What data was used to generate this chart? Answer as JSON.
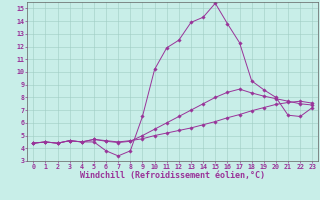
{
  "xlabel": "Windchill (Refroidissement éolien,°C)",
  "xlim": [
    -0.5,
    23.5
  ],
  "ylim": [
    3,
    15.5
  ],
  "xticks": [
    0,
    1,
    2,
    3,
    4,
    5,
    6,
    7,
    8,
    9,
    10,
    11,
    12,
    13,
    14,
    15,
    16,
    17,
    18,
    19,
    20,
    21,
    22,
    23
  ],
  "yticks": [
    3,
    4,
    5,
    6,
    7,
    8,
    9,
    10,
    11,
    12,
    13,
    14,
    15
  ],
  "bg_color": "#c8eee8",
  "grid_color": "#a0ccc4",
  "line_color": "#993399",
  "line1_x": [
    0,
    1,
    2,
    3,
    4,
    5,
    6,
    7,
    8,
    9,
    10,
    11,
    12,
    13,
    14,
    15,
    16,
    17,
    18,
    19,
    20,
    21,
    22,
    23
  ],
  "line1_y": [
    4.4,
    4.5,
    4.4,
    4.6,
    4.5,
    4.7,
    4.6,
    4.5,
    4.6,
    4.75,
    5.0,
    5.2,
    5.4,
    5.6,
    5.85,
    6.1,
    6.4,
    6.65,
    6.95,
    7.2,
    7.45,
    7.6,
    7.7,
    7.55
  ],
  "line2_x": [
    0,
    1,
    2,
    3,
    4,
    5,
    6,
    7,
    8,
    9,
    10,
    11,
    12,
    13,
    14,
    15,
    16,
    17,
    18,
    19,
    20,
    21,
    22,
    23
  ],
  "line2_y": [
    4.4,
    4.5,
    4.4,
    4.6,
    4.5,
    4.7,
    4.55,
    4.45,
    4.55,
    5.0,
    5.5,
    6.0,
    6.5,
    7.0,
    7.5,
    8.0,
    8.4,
    8.65,
    8.35,
    8.1,
    7.9,
    7.7,
    7.5,
    7.4
  ],
  "line3_x": [
    0,
    1,
    2,
    3,
    4,
    5,
    6,
    7,
    8,
    9,
    10,
    11,
    12,
    13,
    14,
    15,
    16,
    17,
    18,
    19,
    20,
    21,
    22,
    23
  ],
  "line3_y": [
    4.4,
    4.5,
    4.4,
    4.6,
    4.5,
    4.5,
    3.8,
    3.4,
    3.8,
    6.5,
    10.2,
    11.9,
    12.5,
    13.9,
    14.3,
    15.4,
    13.8,
    12.3,
    9.3,
    8.6,
    8.0,
    6.6,
    6.5,
    7.2
  ],
  "font_color": "#993399",
  "tick_fontsize": 4.8,
  "label_fontsize": 6.0,
  "marker": "D",
  "marker_size": 1.8
}
